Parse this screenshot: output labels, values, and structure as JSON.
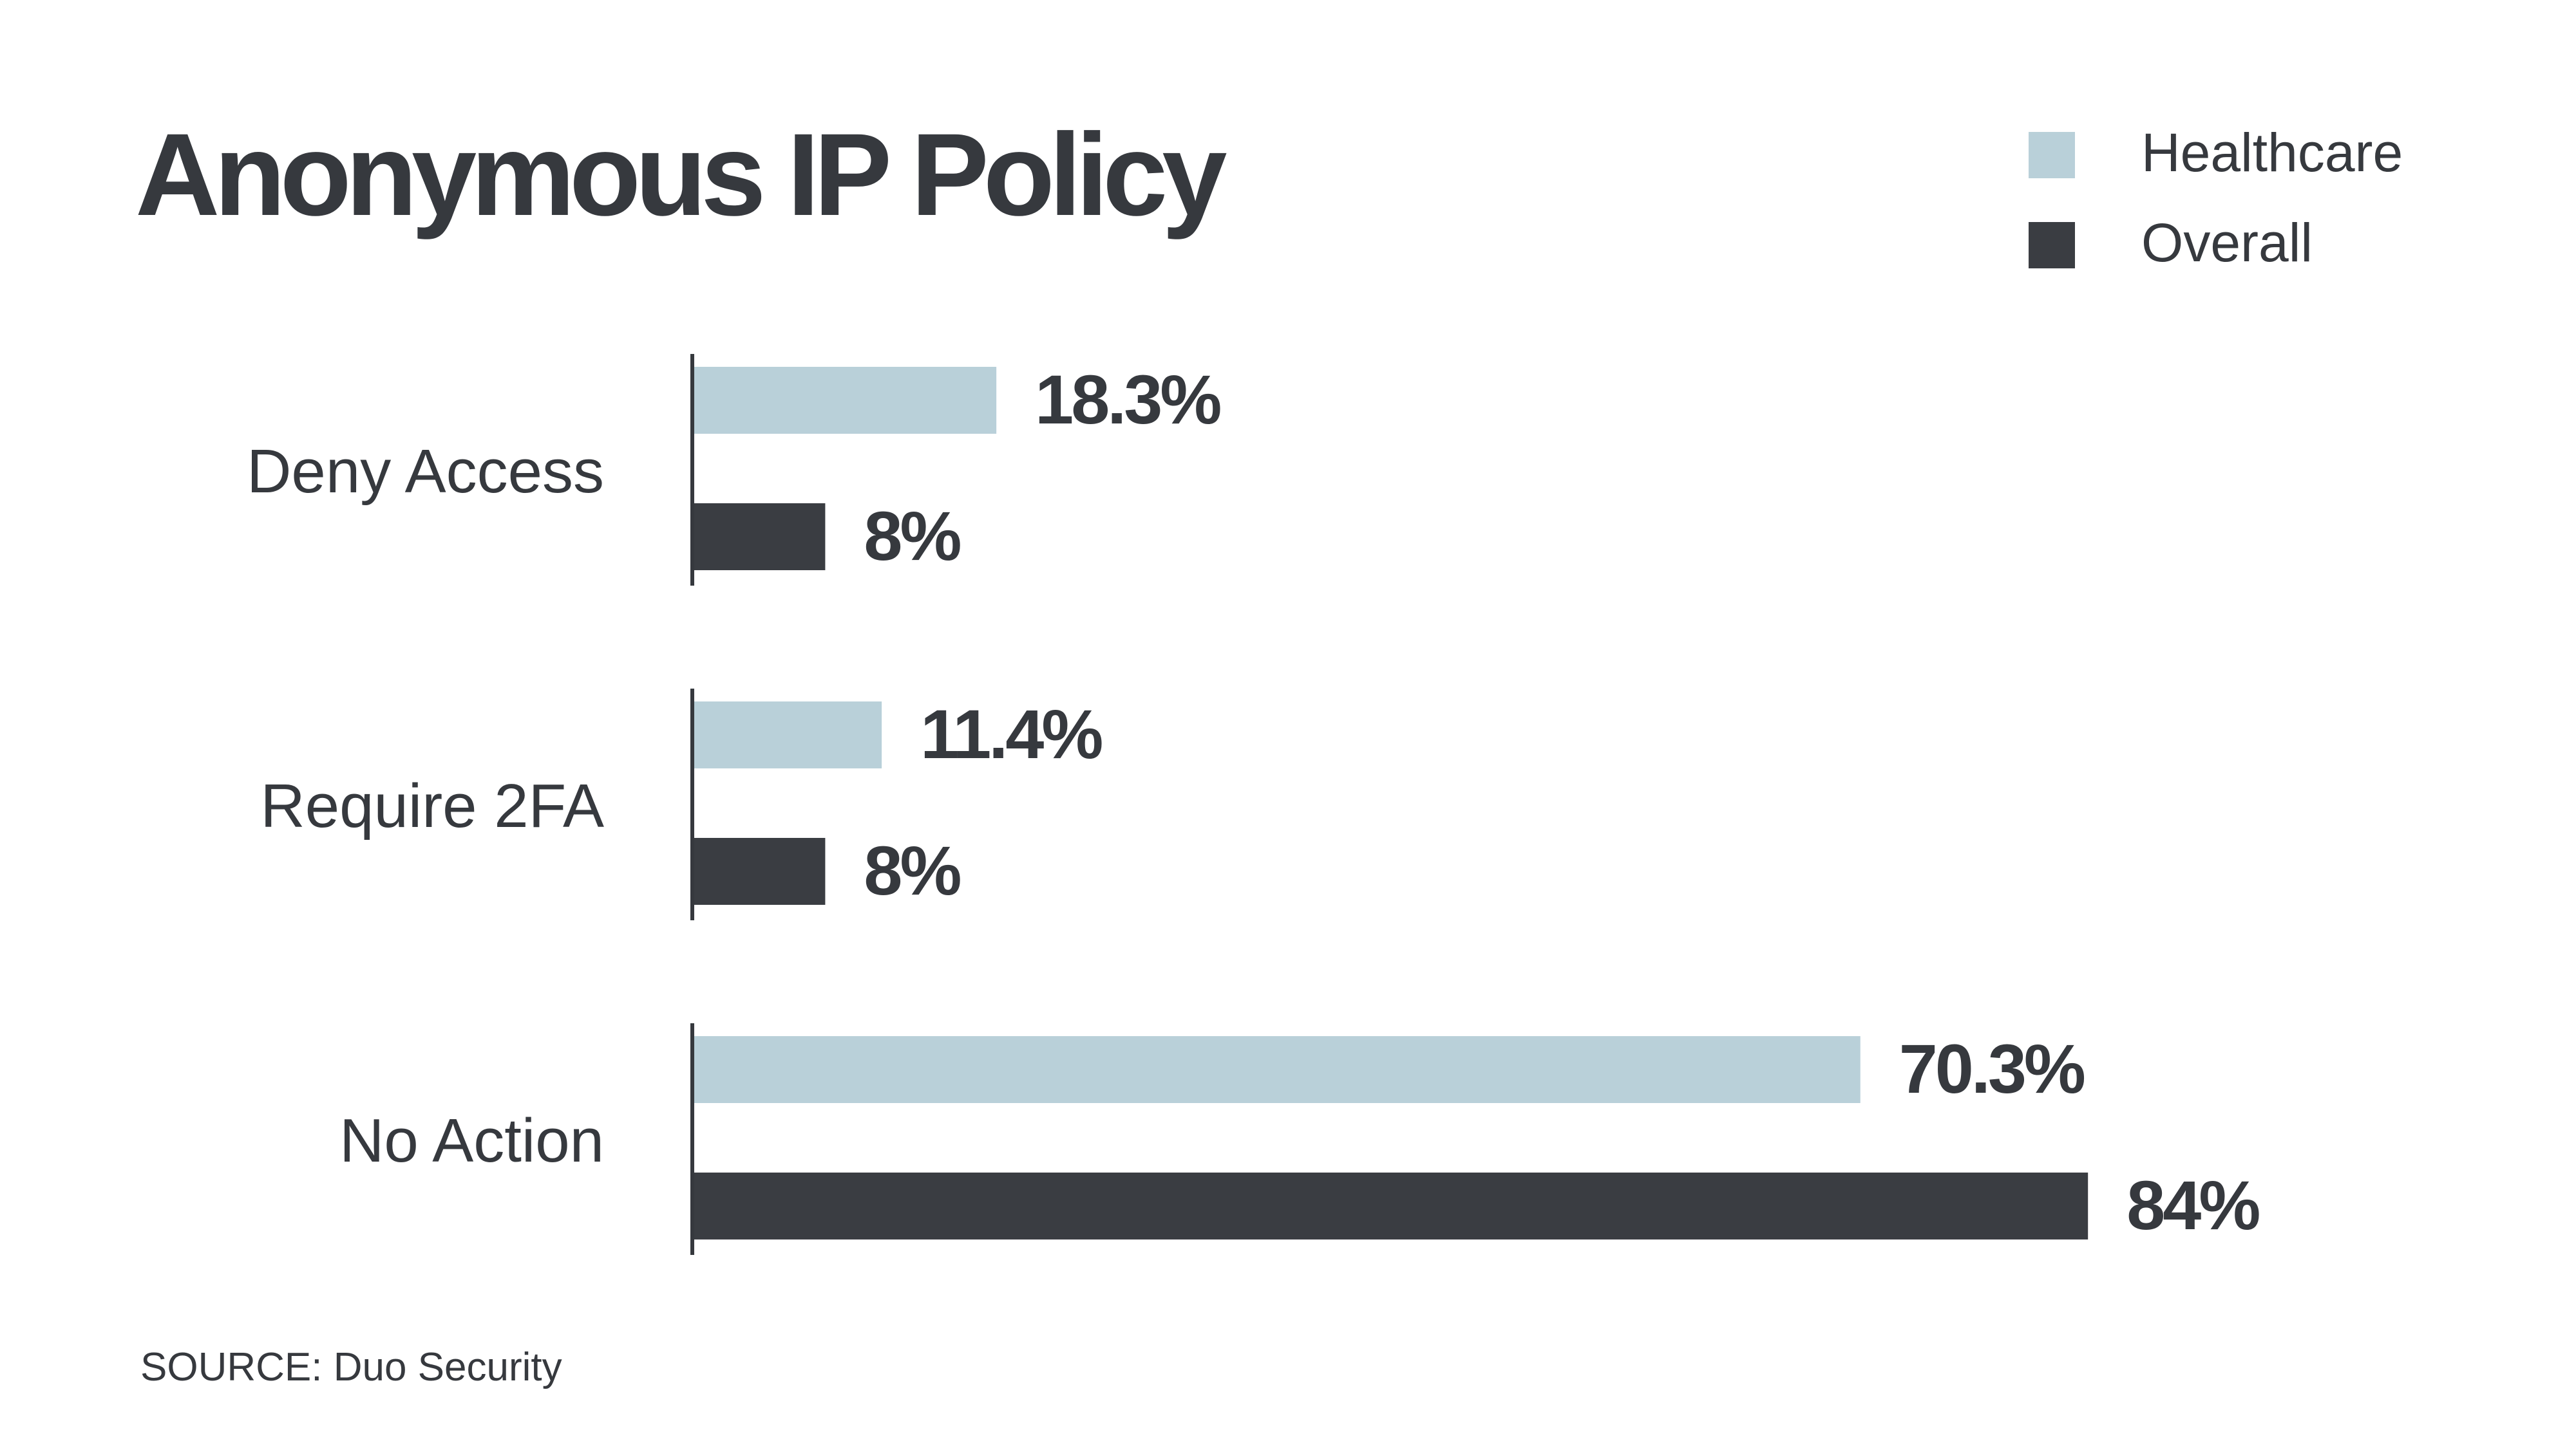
{
  "colors": {
    "healthcare": "#b9d0d9",
    "overall": "#3a3d42",
    "text": "#36393e"
  },
  "source": "SOURCE: Duo Security",
  "chart_data": {
    "type": "bar",
    "orientation": "horizontal",
    "title": "Anonymous IP Policy",
    "categories": [
      "Deny Access",
      "Require 2FA",
      "No Action"
    ],
    "series": [
      {
        "name": "Healthcare",
        "values": [
          18.3,
          11.4,
          70.3
        ],
        "labels": [
          "18.3%",
          "11.4%",
          "70.3%"
        ],
        "color": "#b9d0d9"
      },
      {
        "name": "Overall",
        "values": [
          8,
          8,
          84
        ],
        "labels": [
          "8%",
          "8%",
          "84%"
        ],
        "color": "#3a3d42"
      }
    ],
    "legend": "top-right",
    "grid": false,
    "xlim": [
      0,
      100
    ]
  }
}
